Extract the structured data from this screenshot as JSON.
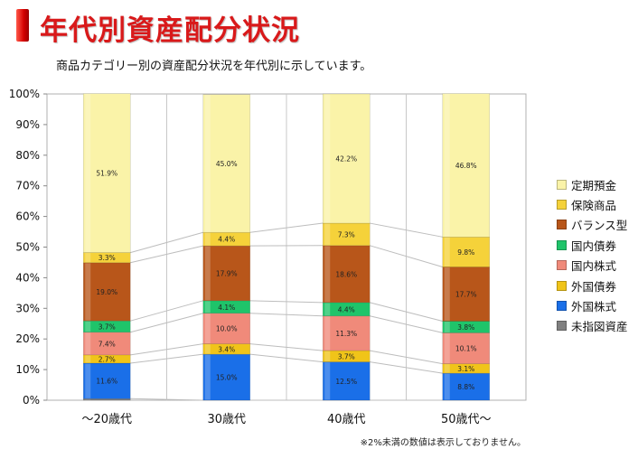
{
  "page": {
    "title": "年代別資産配分状況",
    "subtitle": "商品カテゴリー別の資産配分状況を年代別に示しています。",
    "footnote": "※2%未満の数値は表示しておりません。"
  },
  "chart_data": {
    "type": "bar",
    "stacked": true,
    "categories": [
      "～20歳代",
      "30歳代",
      "40歳代",
      "50歳代～"
    ],
    "ylim": [
      0,
      100
    ],
    "yticks": [
      "0%",
      "10%",
      "20%",
      "30%",
      "40%",
      "50%",
      "60%",
      "70%",
      "80%",
      "90%",
      "100%"
    ],
    "legend_position": "right",
    "series": [
      {
        "name": "未指図資産",
        "color": "#808080",
        "values": [
          0.5,
          0,
          0,
          0
        ],
        "labels": [
          "",
          "",
          "",
          ""
        ]
      },
      {
        "name": "外国株式",
        "color": "#1a6fe8",
        "values": [
          11.6,
          15.0,
          12.5,
          8.8
        ],
        "labels": [
          "11.6%",
          "15.0%",
          "12.5%",
          "8.8%"
        ]
      },
      {
        "name": "外国債券",
        "color": "#f0c419",
        "values": [
          2.7,
          3.4,
          3.7,
          3.1
        ],
        "labels": [
          "2.7%",
          "3.4%",
          "3.7%",
          "3.1%"
        ]
      },
      {
        "name": "国内株式",
        "color": "#f08a7a",
        "values": [
          7.4,
          10.0,
          11.3,
          10.1
        ],
        "labels": [
          "7.4%",
          "10.0%",
          "11.3%",
          "10.1%"
        ]
      },
      {
        "name": "国内債券",
        "color": "#1fc46a",
        "values": [
          3.7,
          4.1,
          4.4,
          3.8
        ],
        "labels": [
          "3.7%",
          "4.1%",
          "4.4%",
          "3.8%"
        ]
      },
      {
        "name": "バランス型",
        "color": "#b8561a",
        "values": [
          19.0,
          17.9,
          18.6,
          17.7
        ],
        "labels": [
          "19.0%",
          "17.9%",
          "18.6%",
          "17.7%"
        ]
      },
      {
        "name": "保険商品",
        "color": "#f5d23a",
        "values": [
          3.3,
          4.4,
          7.3,
          9.8
        ],
        "labels": [
          "3.3%",
          "4.4%",
          "7.3%",
          "9.8%"
        ]
      },
      {
        "name": "定期預金",
        "color": "#faf3a8",
        "values": [
          51.9,
          45.0,
          42.2,
          46.8
        ],
        "labels": [
          "51.9%",
          "45.0%",
          "42.2%",
          "46.8%"
        ]
      }
    ]
  }
}
